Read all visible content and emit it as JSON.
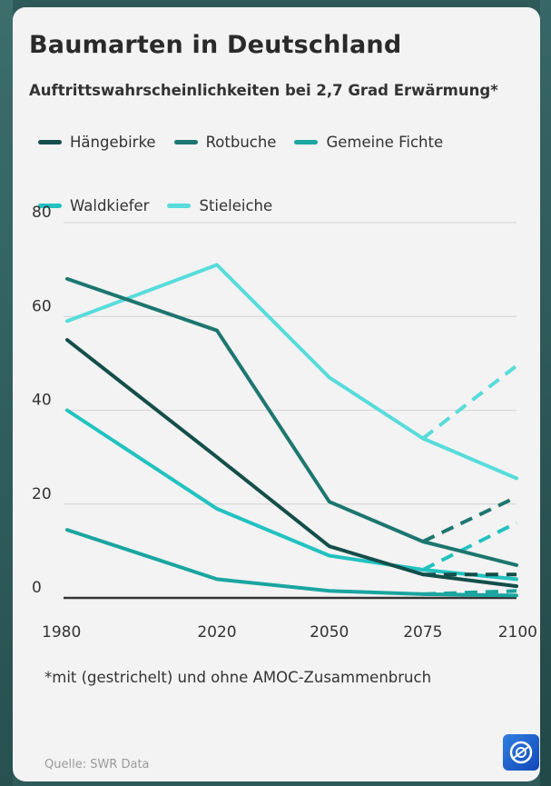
{
  "title": "Baumarten in Deutschland",
  "subtitle": "Auftrittswahrscheinlichkeiten bei 2,7 Grad Erwärmung*",
  "footnote": "*mit (gestrichelt) und ohne AMOC-Zusammenbruch",
  "source": "Quelle: SWR Data",
  "logo_icon": "ard-one-logo-icon",
  "colors": {
    "background": "#f3f3f3",
    "grid": "#d9d9d9",
    "axis": "#333333"
  },
  "chart_data": {
    "type": "line",
    "title": "Baumarten in Deutschland",
    "subtitle": "Auftrittswahrscheinlichkeiten bei 2,7 Grad Erwärmung*",
    "xlabel": "",
    "ylabel": "",
    "x": [
      1980,
      2020,
      2050,
      2075,
      2100
    ],
    "x_tick_labels": [
      "1980",
      "2020",
      "2050",
      "2075",
      "2100"
    ],
    "y_ticks": [
      0,
      20,
      40,
      60,
      80
    ],
    "y_tick_labels": [
      "0",
      "20",
      "40",
      "60",
      "80"
    ],
    "xlim": [
      1980,
      2100
    ],
    "ylim": [
      0,
      80
    ],
    "grid": true,
    "legend_position": "top",
    "series": [
      {
        "name": "Hängebirke",
        "color": "#144e4b",
        "values": [
          55,
          30,
          11,
          5,
          2.5
        ],
        "dashed_x": [
          2075,
          2100
        ],
        "dashed_values": [
          5,
          5
        ]
      },
      {
        "name": "Rotbuche",
        "color": "#1d7670",
        "values": [
          68,
          57,
          20.5,
          12,
          7
        ],
        "dashed_x": [
          2075,
          2100
        ],
        "dashed_values": [
          12,
          21.5
        ]
      },
      {
        "name": "Gemeine Fichte",
        "color": "#1aa5a0",
        "values": [
          14.5,
          4,
          1.5,
          0.8,
          0.5
        ],
        "dashed_x": [
          2075,
          2100
        ],
        "dashed_values": [
          0.8,
          1.5
        ]
      },
      {
        "name": "Waldkiefer",
        "color": "#22c2c0",
        "values": [
          40,
          19,
          9,
          6,
          4
        ],
        "dashed_x": [
          2075,
          2100
        ],
        "dashed_values": [
          6,
          16
        ]
      },
      {
        "name": "Stieleiche",
        "color": "#57dcdb",
        "values": [
          59,
          71,
          47,
          34,
          25.5
        ],
        "dashed_x": [
          2075,
          2100
        ],
        "dashed_values": [
          34,
          49.5
        ]
      }
    ]
  }
}
